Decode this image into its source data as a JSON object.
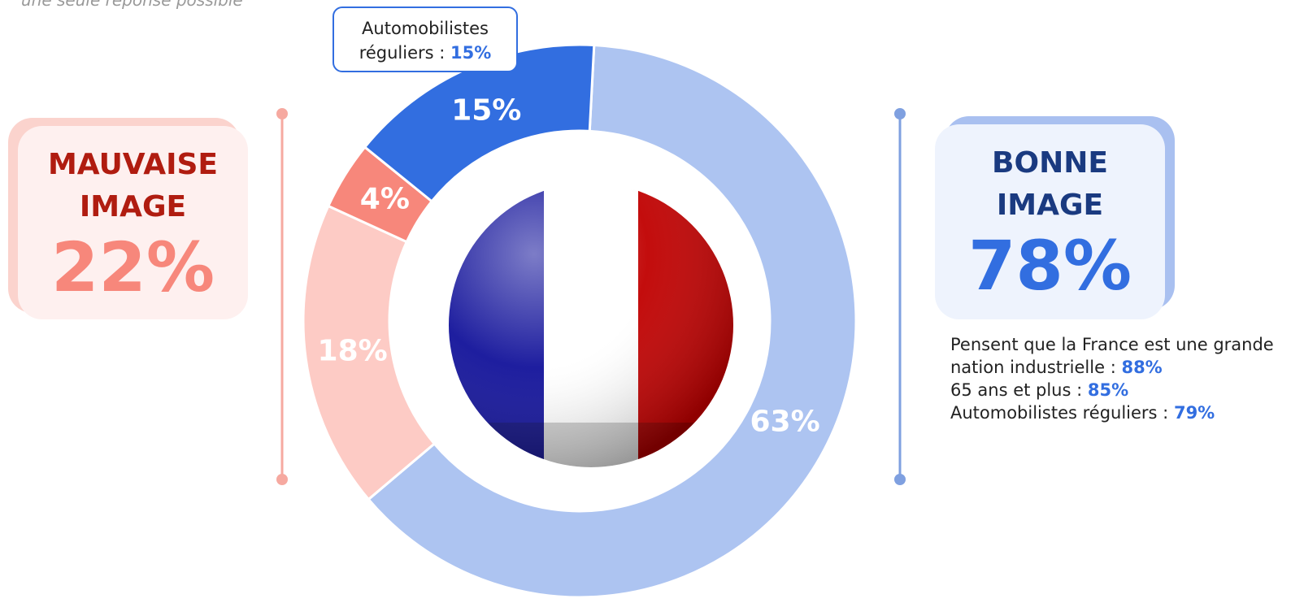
{
  "chart_data": {
    "type": "donut",
    "subtitle": "une seule réponse possible",
    "values": [
      63,
      18,
      4,
      15
    ],
    "value_labels": [
      "63%",
      "18%",
      "4%",
      "15%"
    ],
    "colors": [
      "#adc4f1",
      "#fdcbc5",
      "#f7877b",
      "#326ee0"
    ],
    "start_angle": 3
  },
  "callout": {
    "line1": "Automobilistes",
    "label": "réguliers :",
    "value": "15%"
  },
  "left_box": {
    "line1": "MAUVAISE",
    "line2": "IMAGE",
    "total": "22%"
  },
  "right_box": {
    "line1": "BONNE",
    "line2": "IMAGE",
    "total": "78%"
  },
  "notes": [
    {
      "label": "Pensent que la France est une grande nation industrielle :",
      "value": "88%"
    },
    {
      "label": "65 ans et plus :",
      "value": "85%"
    },
    {
      "label": "Automobilistes réguliers :",
      "value": "79%"
    }
  ]
}
